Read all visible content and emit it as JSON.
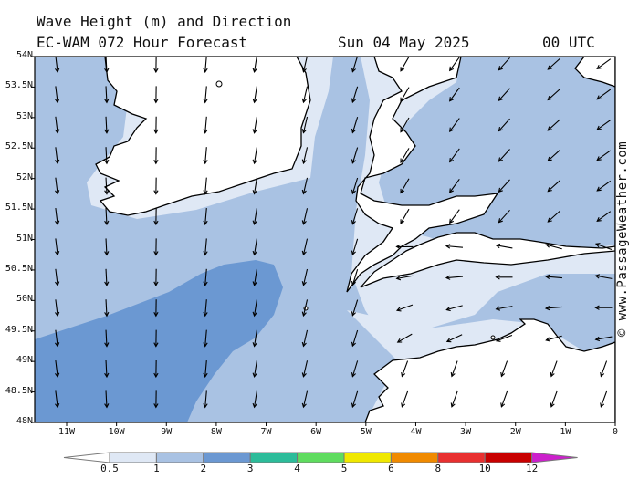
{
  "title": {
    "line1": "Wave Height (m) and Direction",
    "model": "EC-WAM 072 Hour Forecast",
    "date": "Sun 04 May 2025",
    "time": "00 UTC"
  },
  "credit": "© www.PassageWeather.com",
  "lat_labels": [
    "54N",
    "53.5N",
    "53N",
    "52.5N",
    "52N",
    "51.5N",
    "51N",
    "50.5N",
    "50N",
    "49.5N",
    "49N",
    "48.5N",
    "48N"
  ],
  "lon_labels": [
    "11W",
    "10W",
    "9W",
    "8W",
    "7W",
    "6W",
    "5W",
    "4W",
    "3W",
    "2W",
    "1W",
    "0"
  ],
  "scale": {
    "labels": [
      "0.5",
      "1",
      "2",
      "3",
      "4",
      "5",
      "6",
      "8",
      "10",
      "12"
    ],
    "colors": [
      "#dfe8f5",
      "#a9c2e3",
      "#6b98d2",
      "#2cbc9a",
      "#5fdc5f",
      "#f0e800",
      "#f08a00",
      "#e83030",
      "#c80000",
      "#cc20cc"
    ]
  },
  "map_colors": {
    "land": "#ffffff",
    "band_05_1": "#dfe8f5",
    "band_1_2": "#a9c2e3",
    "band_2_3": "#6b98d2"
  }
}
